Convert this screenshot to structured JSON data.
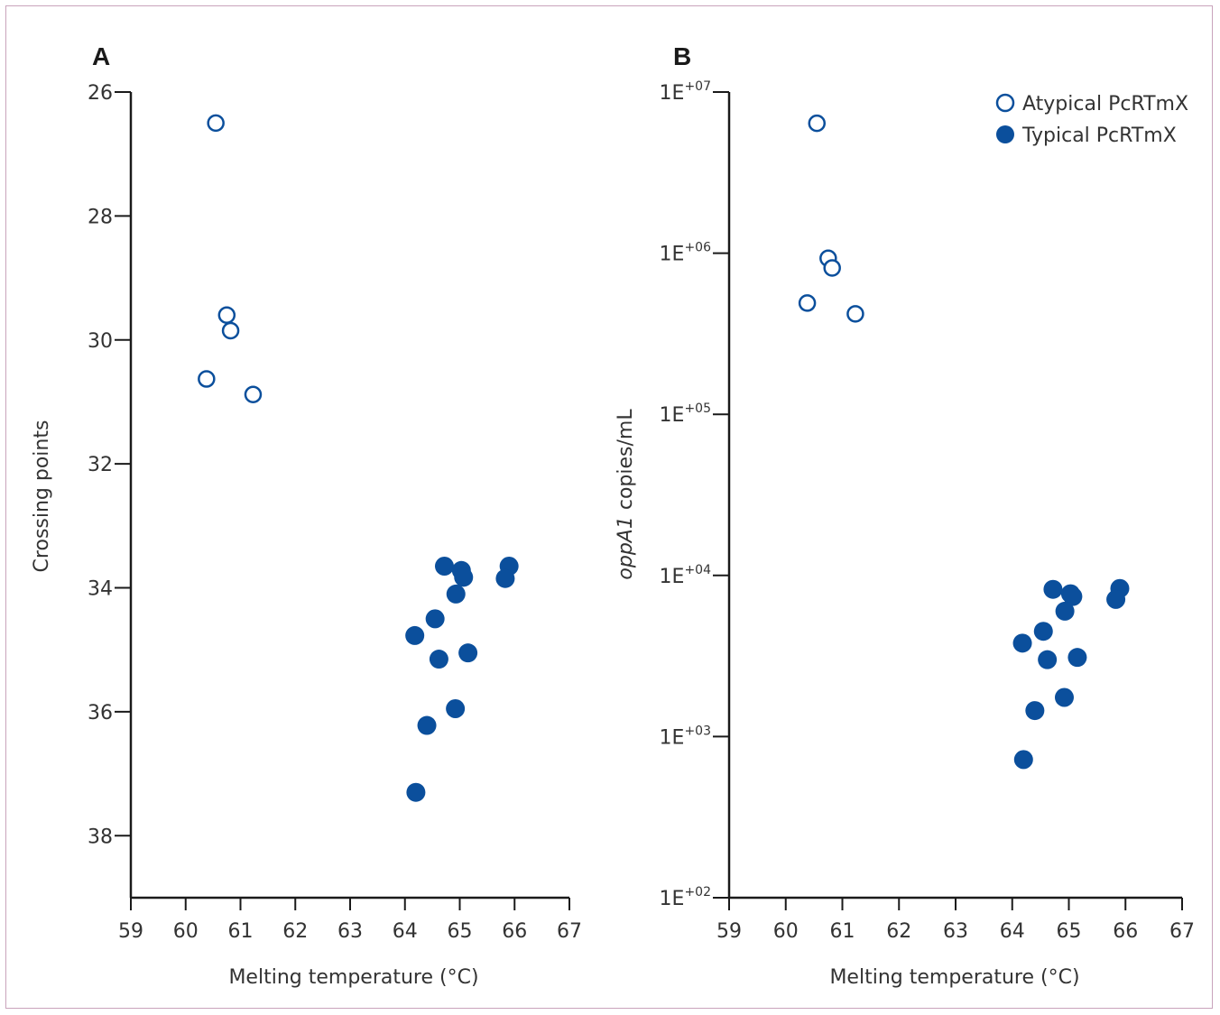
{
  "colors": {
    "marker": "#0b4f9c",
    "axis": "#1a1a1a",
    "text": "#333333"
  },
  "legend": {
    "atypical_label": "Atypical PcRTmX",
    "typical_label": "Typical PcRTmX"
  },
  "chart_data": [
    {
      "panel": "A",
      "type": "scatter",
      "xlabel": "Melting temperature (°C)",
      "ylabel": "Crossing points",
      "xlim": [
        59,
        67
      ],
      "ylim": [
        39,
        26
      ],
      "y_inverted": true,
      "xticks": [
        59,
        60,
        61,
        62,
        63,
        64,
        65,
        66,
        67
      ],
      "yticks": [
        26,
        28,
        30,
        32,
        34,
        36,
        38
      ],
      "series": [
        {
          "name": "Atypical PcRTmX",
          "marker": "open-circle",
          "points": [
            [
              60.55,
              26.5
            ],
            [
              60.75,
              29.6
            ],
            [
              60.82,
              29.85
            ],
            [
              60.38,
              30.63
            ],
            [
              61.23,
              30.88
            ]
          ]
        },
        {
          "name": "Typical PcRTmX",
          "marker": "filled-circle",
          "points": [
            [
              64.72,
              33.65
            ],
            [
              65.03,
              33.72
            ],
            [
              65.07,
              33.83
            ],
            [
              65.9,
              33.65
            ],
            [
              65.83,
              33.85
            ],
            [
              64.93,
              34.1
            ],
            [
              64.55,
              34.5
            ],
            [
              64.18,
              34.77
            ],
            [
              64.62,
              35.15
            ],
            [
              65.15,
              35.05
            ],
            [
              64.92,
              35.95
            ],
            [
              64.4,
              36.22
            ],
            [
              64.2,
              37.3
            ]
          ]
        }
      ]
    },
    {
      "panel": "B",
      "type": "scatter",
      "xlabel": "Melting temperature (°C)",
      "ylabel_italic": "oppA1",
      "ylabel_rest": " copies/mL",
      "xlim": [
        59,
        67
      ],
      "ylim": [
        100,
        10000000
      ],
      "y_scale": "log",
      "xticks": [
        59,
        60,
        61,
        62,
        63,
        64,
        65,
        66,
        67
      ],
      "yticks": [
        {
          "base": "1E",
          "exp": "+02",
          "value": 100
        },
        {
          "base": "1E",
          "exp": "+03",
          "value": 1000
        },
        {
          "base": "1E",
          "exp": "+04",
          "value": 10000
        },
        {
          "base": "1E",
          "exp": "+05",
          "value": 100000
        },
        {
          "base": "1E",
          "exp": "+06",
          "value": 1000000
        },
        {
          "base": "1E",
          "exp": "+07",
          "value": 10000000
        }
      ],
      "legend_position": "top-right",
      "series": [
        {
          "name": "Atypical PcRTmX",
          "marker": "open-circle",
          "points": [
            [
              60.55,
              6400000
            ],
            [
              60.75,
              930000
            ],
            [
              60.82,
              810000
            ],
            [
              60.38,
              490000
            ],
            [
              61.23,
              420000
            ]
          ]
        },
        {
          "name": "Typical PcRTmX",
          "marker": "filled-circle",
          "points": [
            [
              64.72,
              8200
            ],
            [
              65.03,
              7700
            ],
            [
              65.07,
              7400
            ],
            [
              65.9,
              8300
            ],
            [
              65.83,
              7100
            ],
            [
              64.93,
              6000
            ],
            [
              64.55,
              4500
            ],
            [
              64.18,
              3800
            ],
            [
              64.62,
              3000
            ],
            [
              65.15,
              3100
            ],
            [
              64.92,
              1750
            ],
            [
              64.4,
              1450
            ],
            [
              64.2,
              720
            ]
          ]
        }
      ]
    }
  ]
}
